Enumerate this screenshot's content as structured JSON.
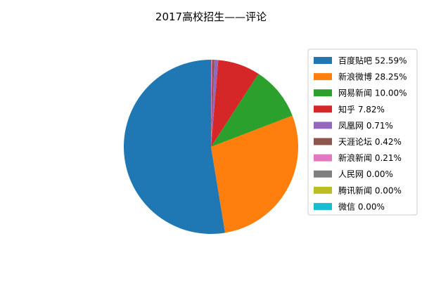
{
  "chart_data": {
    "type": "pie",
    "title": "2017高校招生——评论",
    "legend_position": "right",
    "start_angle_deg": 90,
    "direction": "counterclockwise",
    "slices": [
      {
        "label": "百度贴吧",
        "value": 52.59,
        "legend": "百度贴吧 52.59%",
        "color": "#1f77b4"
      },
      {
        "label": "新浪微博",
        "value": 28.25,
        "legend": "新浪微博 28.25%",
        "color": "#ff7f0e"
      },
      {
        "label": "网易新闻",
        "value": 10.0,
        "legend": "网易新闻 10.00%",
        "color": "#2ca02c"
      },
      {
        "label": "知乎",
        "value": 7.82,
        "legend": "知乎 7.82%",
        "color": "#d62728"
      },
      {
        "label": "凤凰网",
        "value": 0.71,
        "legend": "凤凰网 0.71%",
        "color": "#9467bd"
      },
      {
        "label": "天涯论坛",
        "value": 0.42,
        "legend": "天涯论坛 0.42%",
        "color": "#8c564b"
      },
      {
        "label": "新浪新闻",
        "value": 0.21,
        "legend": "新浪新闻 0.21%",
        "color": "#e377c2"
      },
      {
        "label": "人民网",
        "value": 0.0,
        "legend": "人民网 0.00%",
        "color": "#7f7f7f"
      },
      {
        "label": "腾讯新闻",
        "value": 0.0,
        "legend": "腾讯新闻 0.00%",
        "color": "#bcbd22"
      },
      {
        "label": "微信",
        "value": 0.0,
        "legend": "微信 0.00%",
        "color": "#17becf"
      }
    ]
  }
}
